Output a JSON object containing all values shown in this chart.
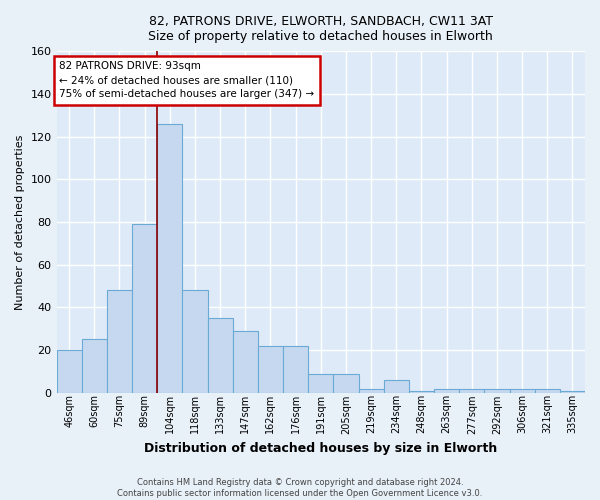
{
  "title_line1": "82, PATRONS DRIVE, ELWORTH, SANDBACH, CW11 3AT",
  "title_line2": "Size of property relative to detached houses in Elworth",
  "xlabel": "Distribution of detached houses by size in Elworth",
  "ylabel": "Number of detached properties",
  "bar_labels": [
    "46sqm",
    "60sqm",
    "75sqm",
    "89sqm",
    "104sqm",
    "118sqm",
    "133sqm",
    "147sqm",
    "162sqm",
    "176sqm",
    "191sqm",
    "205sqm",
    "219sqm",
    "234sqm",
    "248sqm",
    "263sqm",
    "277sqm",
    "292sqm",
    "306sqm",
    "321sqm",
    "335sqm"
  ],
  "bar_heights": [
    20,
    25,
    48,
    79,
    126,
    48,
    35,
    29,
    22,
    22,
    9,
    9,
    2,
    6,
    1,
    2,
    2,
    2,
    2,
    2,
    1
  ],
  "bar_color": "#c5d8f0",
  "bar_edge_color": "#6aaad4",
  "plot_bg_color": "#deeaf8",
  "fig_bg_color": "#e8f0f8",
  "grid_color": "#ffffff",
  "annotation_text": "82 PATRONS DRIVE: 93sqm\n← 24% of detached houses are smaller (110)\n75% of semi-detached houses are larger (347) →",
  "annotation_box_facecolor": "#ffffff",
  "annotation_box_edgecolor": "#cc0000",
  "redline_color": "#8b0000",
  "redline_x": 3.5,
  "footer_text": "Contains HM Land Registry data © Crown copyright and database right 2024.\nContains public sector information licensed under the Open Government Licence v3.0.",
  "ylim_max": 160,
  "yticks": [
    0,
    20,
    40,
    60,
    80,
    100,
    120,
    140,
    160
  ]
}
